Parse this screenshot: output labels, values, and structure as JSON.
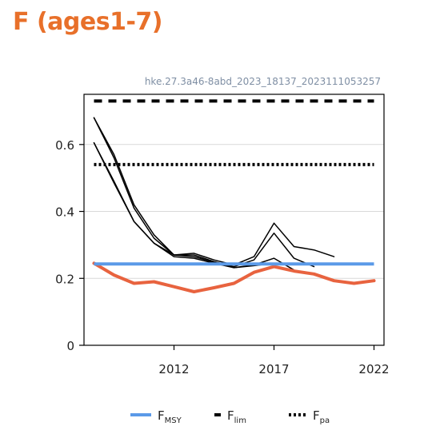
{
  "page": {
    "title": "F (ages1-7)",
    "subtitle": "hke.27.3a46-8abd_2023_18137_2023111053257"
  },
  "chart_data": {
    "type": "line",
    "title": "F (ages1-7)",
    "subtitle": "hke.27.3a46-8abd_2023_18137_2023111053257",
    "xlabel": "",
    "ylabel": "",
    "xlim": [
      2007.5,
      2022.5
    ],
    "ylim": [
      0,
      0.75
    ],
    "x_ticks": [
      2012,
      2017,
      2022
    ],
    "y_ticks": [
      0,
      0.2,
      0.4,
      0.6
    ],
    "y_tick_labels": [
      "0",
      "0.2",
      "0.4",
      "0.6"
    ],
    "grid": "horizontal",
    "legend_position": "bottom",
    "series": [
      {
        "key": "retro-2020",
        "color": "#000000",
        "x": [
          2008,
          2009,
          2010,
          2011,
          2012,
          2013,
          2014,
          2015,
          2016,
          2017,
          2018,
          2019,
          2020
        ],
        "values": [
          0.68,
          0.57,
          0.42,
          0.33,
          0.27,
          0.275,
          0.255,
          0.24,
          0.265,
          0.365,
          0.295,
          0.285,
          0.265
        ]
      },
      {
        "key": "retro-2019",
        "color": "#000000",
        "x": [
          2008,
          2009,
          2010,
          2011,
          2012,
          2013,
          2014,
          2015,
          2016,
          2017,
          2018,
          2019
        ],
        "values": [
          0.68,
          0.56,
          0.41,
          0.32,
          0.27,
          0.27,
          0.25,
          0.235,
          0.255,
          0.335,
          0.26,
          0.235
        ]
      },
      {
        "key": "retro-2018",
        "color": "#000000",
        "x": [
          2008,
          2009,
          2010,
          2011,
          2012,
          2013,
          2014,
          2015,
          2016,
          2017,
          2018
        ],
        "values": [
          0.605,
          0.49,
          0.37,
          0.305,
          0.27,
          0.265,
          0.248,
          0.232,
          0.24,
          0.26,
          0.225
        ]
      },
      {
        "key": "retro-2017",
        "color": "#000000",
        "x": [
          2008,
          2009,
          2010,
          2011,
          2012,
          2013,
          2014,
          2015,
          2016,
          2017
        ],
        "values": [
          0.605,
          0.485,
          0.37,
          0.305,
          0.265,
          0.26,
          0.245,
          0.232,
          0.238,
          0.245
        ]
      },
      {
        "key": "F-current",
        "color": "#e8633f",
        "x": [
          2008,
          2009,
          2010,
          2011,
          2012,
          2013,
          2014,
          2015,
          2016,
          2017,
          2018,
          2019,
          2020,
          2021,
          2022
        ],
        "values": [
          0.245,
          0.21,
          0.185,
          0.19,
          0.175,
          0.16,
          0.172,
          0.185,
          0.218,
          0.235,
          0.222,
          0.213,
          0.193,
          0.185,
          0.193
        ]
      }
    ],
    "reference_lines": [
      {
        "key": "FMSY",
        "name": "FMSY",
        "label_main": "F",
        "label_sub": "MSY",
        "value": 0.243,
        "color": "#5b9ae8",
        "style": "solid"
      },
      {
        "key": "Flim",
        "name": "Flim",
        "label_main": "F",
        "label_sub": "lim",
        "value": 0.73,
        "color": "#000000",
        "style": "dashed"
      },
      {
        "key": "Fpa",
        "name": "Fpa",
        "label_main": "F",
        "label_sub": "pa",
        "value": 0.54,
        "color": "#000000",
        "style": "dotted"
      }
    ]
  }
}
